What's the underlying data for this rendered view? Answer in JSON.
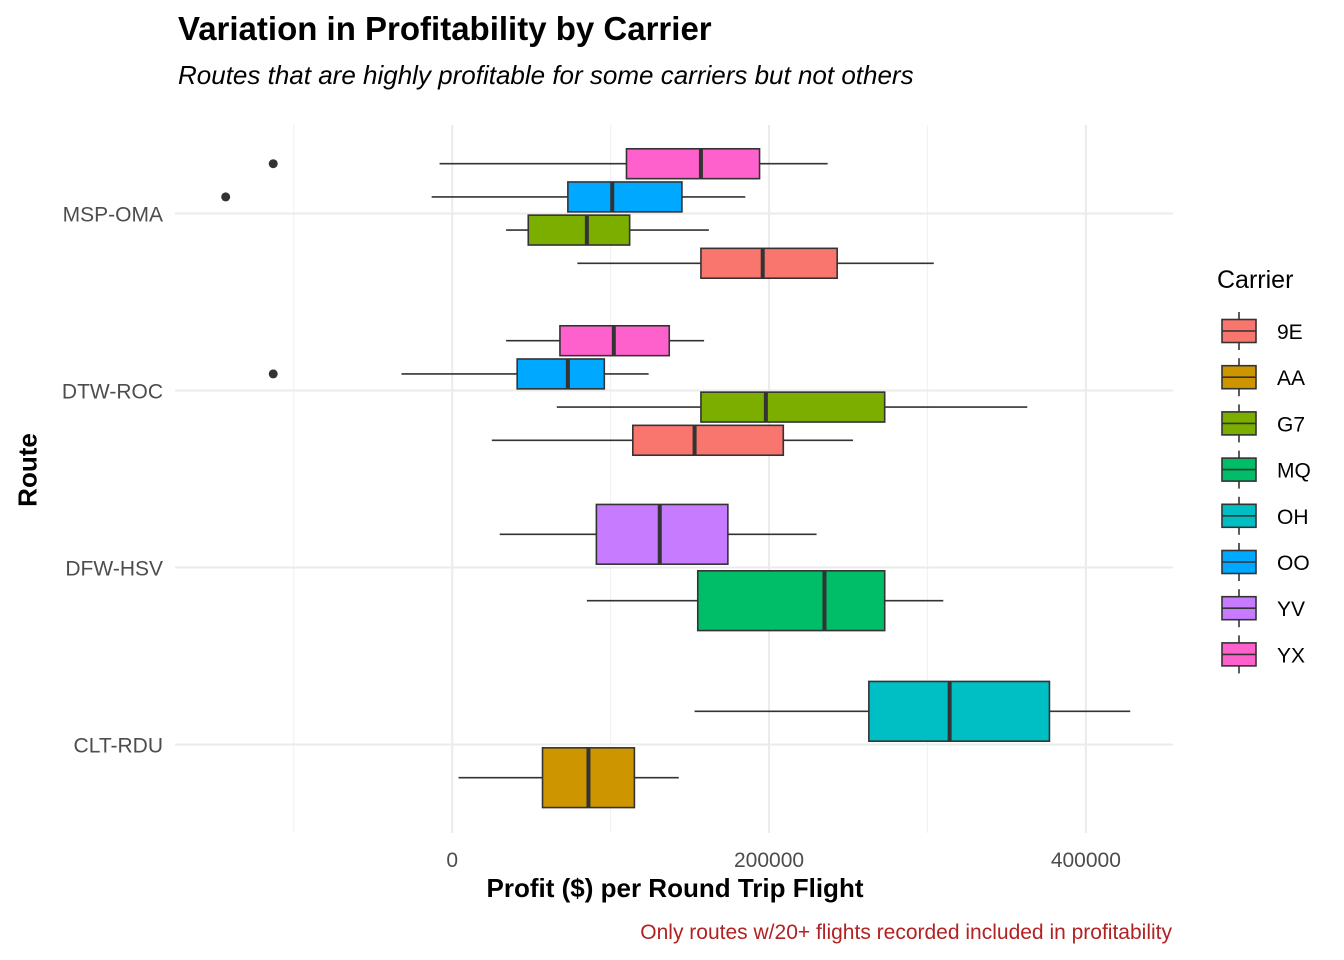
{
  "chart_data": {
    "type": "boxplot",
    "orientation": "horizontal",
    "title": "Variation in Profitability by Carrier",
    "subtitle": "Routes that are highly profitable for some carriers but not others",
    "xlabel": "Profit ($) per Round Trip Flight",
    "ylabel": "Route",
    "caption": "Only routes w/20+ flights recorded included in profitability",
    "xlim": [
      -175000,
      455000
    ],
    "x_ticks": [
      0,
      200000,
      400000
    ],
    "x_tick_labels": [
      "0",
      "200000",
      "400000"
    ],
    "routes": [
      "MSP-OMA",
      "DTW-ROC",
      "DFW-HSV",
      "CLT-RDU"
    ],
    "grid": true,
    "legend": {
      "title": "Carrier",
      "position": "right",
      "entries": [
        {
          "label": "9E",
          "color": "#F8766D"
        },
        {
          "label": "AA",
          "color": "#CD9600"
        },
        {
          "label": "G7",
          "color": "#7CAE00"
        },
        {
          "label": "MQ",
          "color": "#00BE67"
        },
        {
          "label": "OH",
          "color": "#00BFC4"
        },
        {
          "label": "OO",
          "color": "#00A9FF"
        },
        {
          "label": "YV",
          "color": "#C77CFF"
        },
        {
          "label": "YX",
          "color": "#FF61CC"
        }
      ]
    },
    "boxes": [
      {
        "route": "MSP-OMA",
        "carrier": "YX",
        "slot": 0,
        "nslots": 4,
        "whisker_low": -8000,
        "q1": 110000,
        "median": 157000,
        "q3": 194000,
        "whisker_high": 237000,
        "outliers": [
          -113000
        ]
      },
      {
        "route": "MSP-OMA",
        "carrier": "OO",
        "slot": 1,
        "nslots": 4,
        "whisker_low": -13000,
        "q1": 73000,
        "median": 101000,
        "q3": 145000,
        "whisker_high": 185000,
        "outliers": [
          -143000
        ]
      },
      {
        "route": "MSP-OMA",
        "carrier": "G7",
        "slot": 2,
        "nslots": 4,
        "whisker_low": 34000,
        "q1": 48000,
        "median": 85000,
        "q3": 112000,
        "whisker_high": 162000,
        "outliers": []
      },
      {
        "route": "MSP-OMA",
        "carrier": "9E",
        "slot": 3,
        "nslots": 4,
        "whisker_low": 79000,
        "q1": 157000,
        "median": 196000,
        "q3": 243000,
        "whisker_high": 304000,
        "outliers": []
      },
      {
        "route": "DTW-ROC",
        "carrier": "YX",
        "slot": 0,
        "nslots": 4,
        "whisker_low": 34000,
        "q1": 68000,
        "median": 102000,
        "q3": 137000,
        "whisker_high": 159000,
        "outliers": []
      },
      {
        "route": "DTW-ROC",
        "carrier": "OO",
        "slot": 1,
        "nslots": 4,
        "whisker_low": -32000,
        "q1": 41000,
        "median": 73000,
        "q3": 96000,
        "whisker_high": 124000,
        "outliers": [
          -113000
        ]
      },
      {
        "route": "DTW-ROC",
        "carrier": "G7",
        "slot": 2,
        "nslots": 4,
        "whisker_low": 66000,
        "q1": 157000,
        "median": 198000,
        "q3": 273000,
        "whisker_high": 363000,
        "outliers": []
      },
      {
        "route": "DTW-ROC",
        "carrier": "9E",
        "slot": 3,
        "nslots": 4,
        "whisker_low": 25000,
        "q1": 114000,
        "median": 153000,
        "q3": 209000,
        "whisker_high": 253000,
        "outliers": []
      },
      {
        "route": "DFW-HSV",
        "carrier": "YV",
        "slot": 0,
        "nslots": 2,
        "whisker_low": 30000,
        "q1": 91000,
        "median": 131000,
        "q3": 174000,
        "whisker_high": 230000,
        "outliers": []
      },
      {
        "route": "DFW-HSV",
        "carrier": "MQ",
        "slot": 1,
        "nslots": 2,
        "whisker_low": 85000,
        "q1": 155000,
        "median": 235000,
        "q3": 273000,
        "whisker_high": 310000,
        "outliers": []
      },
      {
        "route": "CLT-RDU",
        "carrier": "OH",
        "slot": 0,
        "nslots": 2,
        "whisker_low": 153000,
        "q1": 263000,
        "median": 314000,
        "q3": 377000,
        "whisker_high": 428000,
        "outliers": []
      },
      {
        "route": "CLT-RDU",
        "carrier": "AA",
        "slot": 1,
        "nslots": 2,
        "whisker_low": 4000,
        "q1": 57000,
        "median": 86000,
        "q3": 115000,
        "whisker_high": 143000,
        "outliers": []
      }
    ]
  }
}
